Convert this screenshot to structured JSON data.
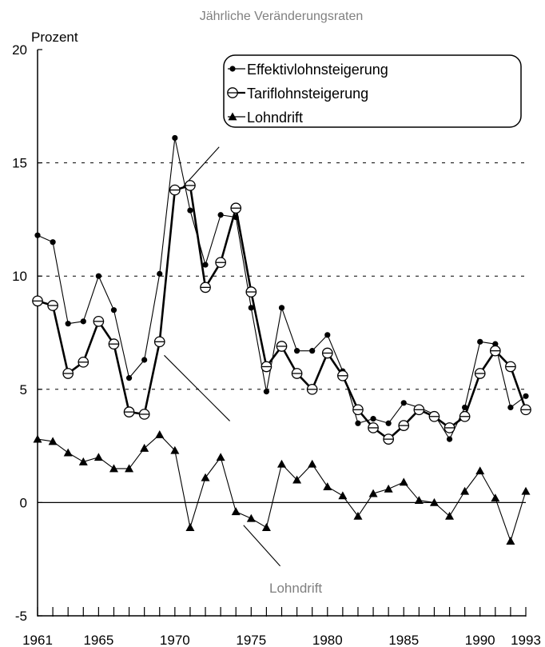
{
  "chart_data": {
    "type": "line",
    "title": "Jährliche Veränderungsraten",
    "ylabel": "Prozent",
    "xlabel": "",
    "ylim": [
      -5,
      20
    ],
    "xlim": [
      1961,
      1993
    ],
    "yticks": [
      -5,
      0,
      5,
      10,
      15,
      20
    ],
    "xtick_labels": [
      1961,
      1965,
      1970,
      1975,
      1980,
      1985,
      1990,
      1993
    ],
    "grid": "dashed horizontal at 5, 10, 15; solid zero line",
    "legend_position": "top-right",
    "x": [
      1961,
      1962,
      1963,
      1964,
      1965,
      1966,
      1967,
      1968,
      1969,
      1970,
      1971,
      1972,
      1973,
      1974,
      1975,
      1976,
      1977,
      1978,
      1979,
      1980,
      1981,
      1982,
      1983,
      1984,
      1985,
      1986,
      1987,
      1988,
      1989,
      1990,
      1991,
      1992,
      1993
    ],
    "series": [
      {
        "name": "Effektivlohnsteigerung",
        "marker": "filled-circle",
        "line": "thin",
        "values": [
          11.8,
          11.5,
          7.9,
          8.0,
          10.0,
          8.5,
          5.5,
          6.3,
          10.1,
          16.1,
          12.9,
          10.5,
          12.7,
          12.6,
          8.6,
          4.9,
          8.6,
          6.7,
          6.7,
          7.4,
          5.8,
          3.5,
          3.7,
          3.5,
          4.4,
          4.2,
          3.9,
          2.8,
          4.2,
          7.1,
          7.0,
          4.2,
          4.7
        ]
      },
      {
        "name": "Tariflohnsteigerung",
        "marker": "open-circle",
        "line": "thick",
        "values": [
          8.9,
          8.7,
          5.7,
          6.2,
          8.0,
          7.0,
          4.0,
          3.9,
          7.1,
          13.8,
          14.0,
          9.5,
          10.6,
          13.0,
          9.3,
          6.0,
          6.9,
          5.7,
          5.0,
          6.6,
          5.6,
          4.1,
          3.3,
          2.8,
          3.4,
          4.1,
          3.8,
          3.3,
          3.8,
          5.7,
          6.7,
          6.0,
          4.1
        ]
      },
      {
        "name": "Lohndrift",
        "marker": "filled-triangle",
        "line": "thin",
        "values": [
          2.8,
          2.7,
          2.2,
          1.8,
          2.0,
          1.5,
          1.5,
          2.4,
          3.0,
          2.3,
          -1.1,
          1.1,
          2.0,
          -0.4,
          -0.7,
          -1.1,
          1.7,
          1.0,
          1.7,
          0.7,
          0.3,
          -0.6,
          0.4,
          0.6,
          0.9,
          0.1,
          0.0,
          -0.6,
          0.5,
          1.4,
          0.2,
          -1.7,
          0.5
        ]
      }
    ],
    "annotations": [
      {
        "text": "Lohndrift"
      }
    ],
    "colors": {
      "series": "#000000",
      "grid": "#000000",
      "annotation": "#808080",
      "title": "#808080"
    }
  }
}
